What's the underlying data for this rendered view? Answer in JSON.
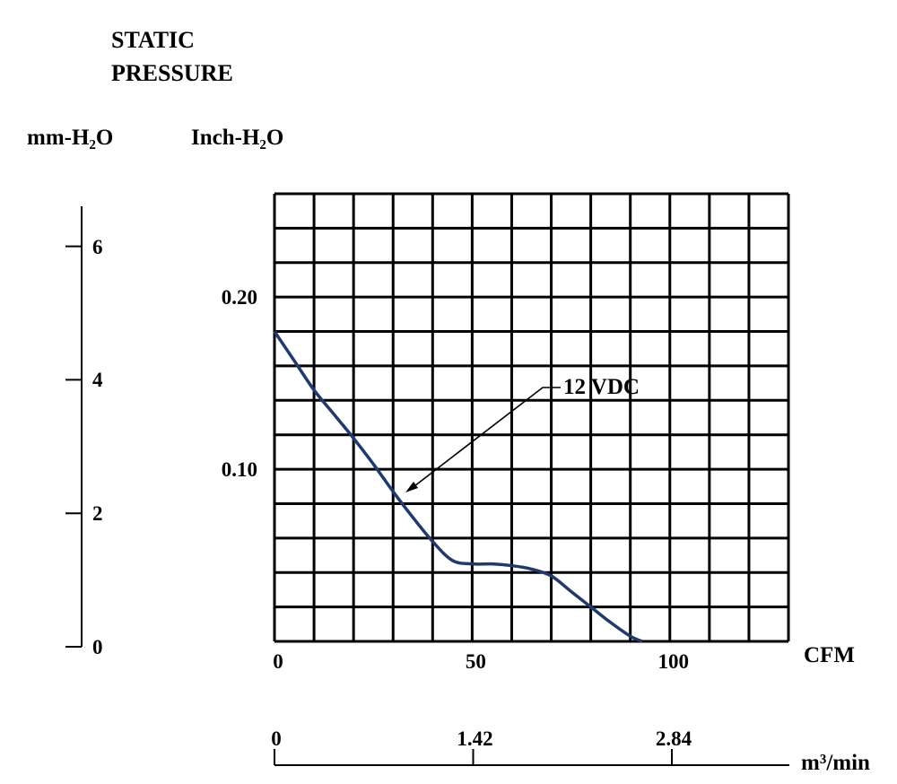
{
  "chart_data": {
    "type": "line",
    "title_line1": "STATIC",
    "title_line2": "PRESSURE",
    "y_unit_mm": "mm-H₂O",
    "y_unit_inch": "Inch-H₂O",
    "x_unit_cfm": "CFM",
    "x_unit_m3": "m³/min",
    "grid": true,
    "xlim": [
      0,
      130
    ],
    "ylim_inch": [
      0,
      0.26
    ],
    "ylim_mm": [
      0,
      6.6
    ],
    "x_ticks": [
      "0",
      "50",
      "100"
    ],
    "x_ticks_values": [
      0,
      50,
      100
    ],
    "x2_ticks": [
      "0",
      "1.42",
      "2.84"
    ],
    "x2_ticks_values": [
      0,
      1.42,
      2.84
    ],
    "y_inch_ticks": [
      "0.20",
      "0.10"
    ],
    "y_inch_ticks_values": [
      0.2,
      0.1
    ],
    "y_mm_ticks": [
      "6",
      "4",
      "2",
      "0"
    ],
    "y_mm_ticks_values": [
      6,
      4,
      2,
      0
    ],
    "series": [
      {
        "name": "12 VDC",
        "color": "#1f3a6e",
        "x": [
          0,
          5,
          10,
          15,
          20,
          25,
          30,
          35,
          40,
          45,
          50,
          55,
          60,
          65,
          70,
          75,
          80,
          85,
          90,
          93
        ],
        "y": [
          0.18,
          0.163,
          0.146,
          0.132,
          0.118,
          0.103,
          0.087,
          0.072,
          0.058,
          0.047,
          0.045,
          0.045,
          0.044,
          0.042,
          0.038,
          0.029,
          0.02,
          0.011,
          0.003,
          0.0
        ]
      }
    ],
    "annotation": "12 VDC"
  }
}
